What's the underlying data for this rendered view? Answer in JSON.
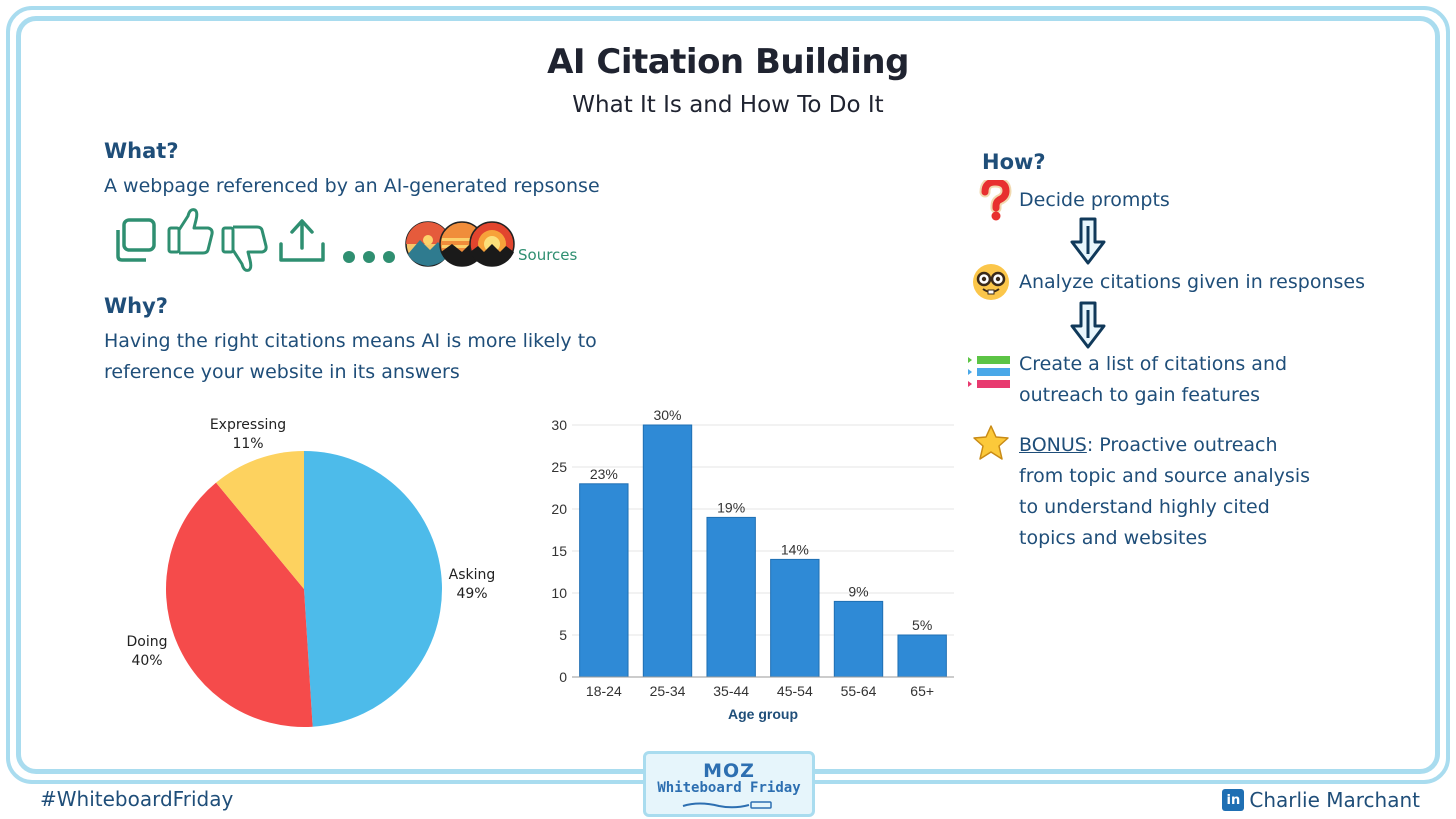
{
  "page": {
    "title": "AI Citation Building",
    "subtitle": "What It Is and How To Do It"
  },
  "what": {
    "heading": "What?",
    "text": "A webpage referenced by an AI-generated repsonse",
    "toolbar_icons": [
      "copy-icon",
      "thumbs-up-icon",
      "thumbs-down-icon",
      "share-icon",
      "more-icon",
      "source-favicons"
    ],
    "sources_label": "Sources"
  },
  "why": {
    "heading": "Why?",
    "line1": "Having the right citations means AI is more likely to",
    "line2": "reference your website in its answers"
  },
  "how": {
    "heading": "How?",
    "step1": "Decide prompts",
    "step2": "Analyze citations given in responses",
    "step3_line1": "Create a list of citations and",
    "step3_line2": "outreach to gain features",
    "bonus_label": "BONUS",
    "bonus_line1": ": Proactive outreach",
    "bonus_line2": "from topic and source analysis",
    "bonus_line3": "to understand highly cited",
    "bonus_line4": "topics and websites",
    "icons": [
      "question-mark-icon",
      "arrow-down-icon",
      "nerd-face-icon",
      "arrow-down-icon",
      "list-bars-icon",
      "star-icon"
    ]
  },
  "chart_data": [
    {
      "type": "pie",
      "slices": [
        {
          "label": "Asking",
          "value": 49,
          "pct_label": "49%",
          "color": "#4dbbea"
        },
        {
          "label": "Doing",
          "value": 40,
          "pct_label": "40%",
          "color": "#f54b4b"
        },
        {
          "label": "Expressing",
          "value": 11,
          "pct_label": "11%",
          "color": "#fdd25f"
        }
      ]
    },
    {
      "type": "bar",
      "categories": [
        "18-24",
        "25-34",
        "35-44",
        "45-54",
        "55-64",
        "65+"
      ],
      "values": [
        23,
        30,
        19,
        14,
        9,
        5
      ],
      "data_labels": [
        "23%",
        "30%",
        "19%",
        "14%",
        "9%",
        "5%"
      ],
      "xlabel": "Age group",
      "ylabel": "",
      "ylim": [
        0,
        30
      ],
      "yticks": [
        0,
        5,
        10,
        15,
        20,
        25,
        30
      ],
      "color": "#2f8ad6",
      "grid": true
    }
  ],
  "footer": {
    "hashtag": "#WhiteboardFriday",
    "author": "Charlie Marchant",
    "linkedin_badge": "in",
    "logo_top": "MOZ",
    "logo_bottom": "Whiteboard Friday"
  }
}
